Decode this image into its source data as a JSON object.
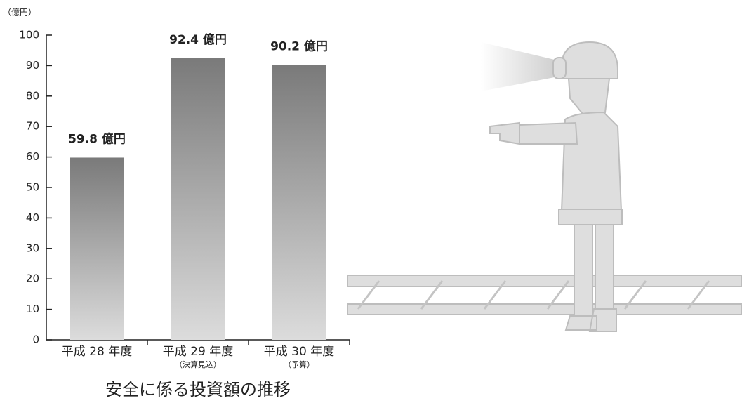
{
  "chart_data": {
    "type": "bar",
    "title": "安全に係る投資額の推移",
    "y_label": "（億円）",
    "categories": [
      "平成 28 年度",
      "平成 29 年度",
      "平成 30 年度"
    ],
    "category_notes": [
      null,
      "（決算見込）",
      "（予算）"
    ],
    "values": [
      59.8,
      92.4,
      90.2
    ],
    "value_labels": [
      "59.8 億円",
      "92.4 億円",
      "90.2 億円"
    ],
    "color": "#7a7a7a",
    "ylim": [
      0,
      100
    ],
    "yticks": [
      0,
      10,
      20,
      30,
      40,
      50,
      60,
      70,
      80,
      90,
      100
    ]
  }
}
